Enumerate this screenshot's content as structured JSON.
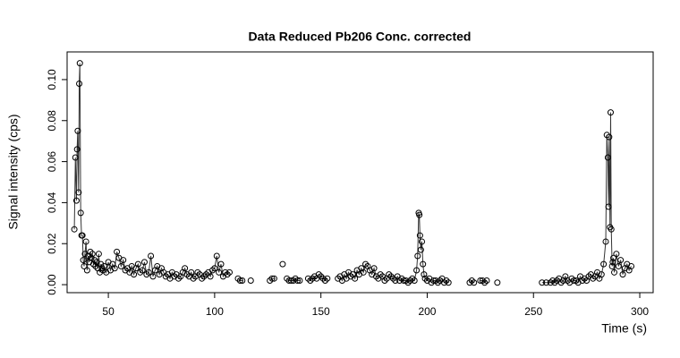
{
  "chart_data": {
    "type": "line",
    "title": "Data Reduced Pb206 Conc. corrected",
    "x_label": "Time (s)",
    "y_label": "Signal intensity (cps)",
    "color": "#333333",
    "marker_color": "#000000",
    "xlim": [
      30.6,
      306.3
    ],
    "ylim": [
      -0.0039,
      0.1135
    ],
    "xticks": [
      50,
      100,
      150,
      200,
      250,
      300
    ],
    "yticks": [
      {
        "value": 0,
        "label": "0.00"
      },
      {
        "value": 0.02,
        "label": "0.02"
      },
      {
        "value": 0.04,
        "label": "0.04"
      },
      {
        "value": 0.06,
        "label": "0.06"
      },
      {
        "value": 0.08,
        "label": "0.08"
      },
      {
        "value": 0.1,
        "label": "0.10"
      }
    ],
    "x": [
      34,
      34.5,
      35,
      35.3,
      35.6,
      36,
      36.3,
      36.6,
      37,
      37.4,
      37.8,
      38.2,
      38.6,
      39,
      39.5,
      40,
      40.5,
      41,
      41.5,
      42,
      42.5,
      43,
      43.5,
      44,
      44.5,
      45,
      45.5,
      46,
      46.5,
      47,
      47.5,
      48,
      49,
      50,
      51,
      52,
      53,
      54,
      55,
      56,
      57,
      58,
      59,
      60,
      61,
      62,
      63,
      64,
      65,
      66,
      67,
      68,
      69,
      70,
      71,
      72,
      73,
      74,
      75,
      76,
      77,
      78,
      79,
      80,
      81,
      82,
      83,
      84,
      85,
      86,
      87,
      88,
      89,
      90,
      91,
      92,
      93,
      94,
      95,
      96,
      97,
      98,
      99,
      100,
      101,
      102,
      103,
      104,
      105,
      106,
      107,
      109,
      111,
      112,
      113,
      115,
      117,
      120,
      126,
      127,
      128,
      130,
      132,
      133,
      134,
      135,
      136,
      137,
      138,
      139,
      140,
      142,
      144,
      145,
      146,
      147,
      148,
      149,
      150,
      151,
      152,
      153,
      155,
      158,
      159,
      160,
      161,
      162,
      163,
      164,
      165,
      166,
      167,
      168,
      169,
      170,
      171,
      172,
      173,
      174,
      175,
      176,
      177,
      178,
      179,
      180,
      181,
      182,
      183,
      184,
      185,
      186,
      187,
      188,
      189,
      190,
      191,
      192,
      193,
      194,
      195,
      195.5,
      196,
      196.3,
      196.6,
      197,
      197.5,
      198,
      198.5,
      199,
      200,
      201,
      202,
      203,
      204,
      205,
      206,
      207,
      208,
      209,
      210,
      214,
      220,
      221,
      222,
      223,
      225,
      226,
      227,
      228,
      230,
      233,
      240,
      254,
      256,
      258,
      259,
      260,
      261,
      262,
      263,
      264,
      265,
      266,
      267,
      268,
      269,
      270,
      271,
      272,
      273,
      274,
      275,
      276,
      277,
      278,
      279,
      280,
      281,
      282,
      283,
      284,
      284.5,
      285,
      285.3,
      285.6,
      286,
      286.3,
      286.6,
      287,
      287.3,
      287.6,
      288,
      289,
      290,
      291,
      292,
      293,
      294,
      295,
      296
    ],
    "values": [
      0.027,
      0.062,
      0.041,
      0.066,
      0.075,
      0.045,
      0.098,
      0.108,
      0.035,
      0.024,
      0.024,
      0.012,
      0.009,
      0.015,
      0.021,
      0.007,
      0.014,
      0.011,
      0.016,
      0.013,
      0.015,
      0.01,
      0.012,
      0.009,
      0.011,
      0.008,
      0.015,
      0.006,
      0.01,
      0.008,
      0.007,
      0.009,
      0.006,
      0.011,
      0.007,
      0.01,
      0.008,
      0.016,
      0.013,
      0.009,
      0.012,
      0.007,
      0.008,
      0.006,
      0.009,
      0.005,
      0.008,
      0.01,
      0.006,
      0.007,
      0.011,
      0.005,
      0.006,
      0.014,
      0.004,
      0.007,
      0.009,
      0.005,
      0.008,
      0.006,
      0.004,
      0.005,
      0.003,
      0.006,
      0.004,
      0.005,
      0.003,
      0.004,
      0.006,
      0.008,
      0.005,
      0.004,
      0.006,
      0.003,
      0.004,
      0.006,
      0.005,
      0.003,
      0.004,
      0.005,
      0.006,
      0.004,
      0.007,
      0.008,
      0.014,
      0.006,
      0.01,
      0.004,
      0.006,
      0.005,
      0.006,
      null,
      0.003,
      0.002,
      0.002,
      null,
      0.002,
      null,
      0.002,
      0.003,
      0.003,
      null,
      0.01,
      null,
      0.003,
      0.002,
      0.002,
      0.002,
      0.003,
      0.002,
      0.002,
      null,
      0.003,
      0.002,
      0.003,
      0.004,
      0.003,
      0.005,
      0.004,
      0.003,
      0.002,
      0.003,
      null,
      0.003,
      0.004,
      0.002,
      0.005,
      0.003,
      0.006,
      0.004,
      0.005,
      0.003,
      0.007,
      0.005,
      0.008,
      0.006,
      0.01,
      0.009,
      0.007,
      0.005,
      0.008,
      0.004,
      0.003,
      0.005,
      0.004,
      0.002,
      0.003,
      0.005,
      0.004,
      0.003,
      0.002,
      0.004,
      0.002,
      0.003,
      0.002,
      0.002,
      0.001,
      0.002,
      0.003,
      0.002,
      0.007,
      0.014,
      0.035,
      0.034,
      0.024,
      0.017,
      0.021,
      0.01,
      0.005,
      0.003,
      0.002,
      0.003,
      0.001,
      0.002,
      0.002,
      0.001,
      0.002,
      0.003,
      0.001,
      0.002,
      0.001,
      null,
      0.001,
      0.002,
      0.001,
      null,
      0.002,
      0.002,
      0.001,
      0.002,
      null,
      0.001,
      null,
      0.001,
      0.001,
      0.001,
      0.002,
      0.001,
      0.002,
      0.003,
      0.001,
      0.002,
      0.004,
      0.002,
      0.001,
      0.003,
      0.002,
      0.002,
      0.001,
      0.004,
      0.002,
      0.003,
      0.002,
      0.004,
      0.005,
      0.003,
      0.004,
      0.006,
      0.003,
      0.005,
      0.01,
      0.021,
      0.073,
      0.062,
      0.038,
      0.072,
      0.028,
      0.084,
      0.027,
      0.009,
      0.011,
      0.013,
      0.006,
      0.015,
      0.009,
      0.012,
      0.005,
      0.008,
      0.01,
      0.007,
      0.009
    ]
  }
}
